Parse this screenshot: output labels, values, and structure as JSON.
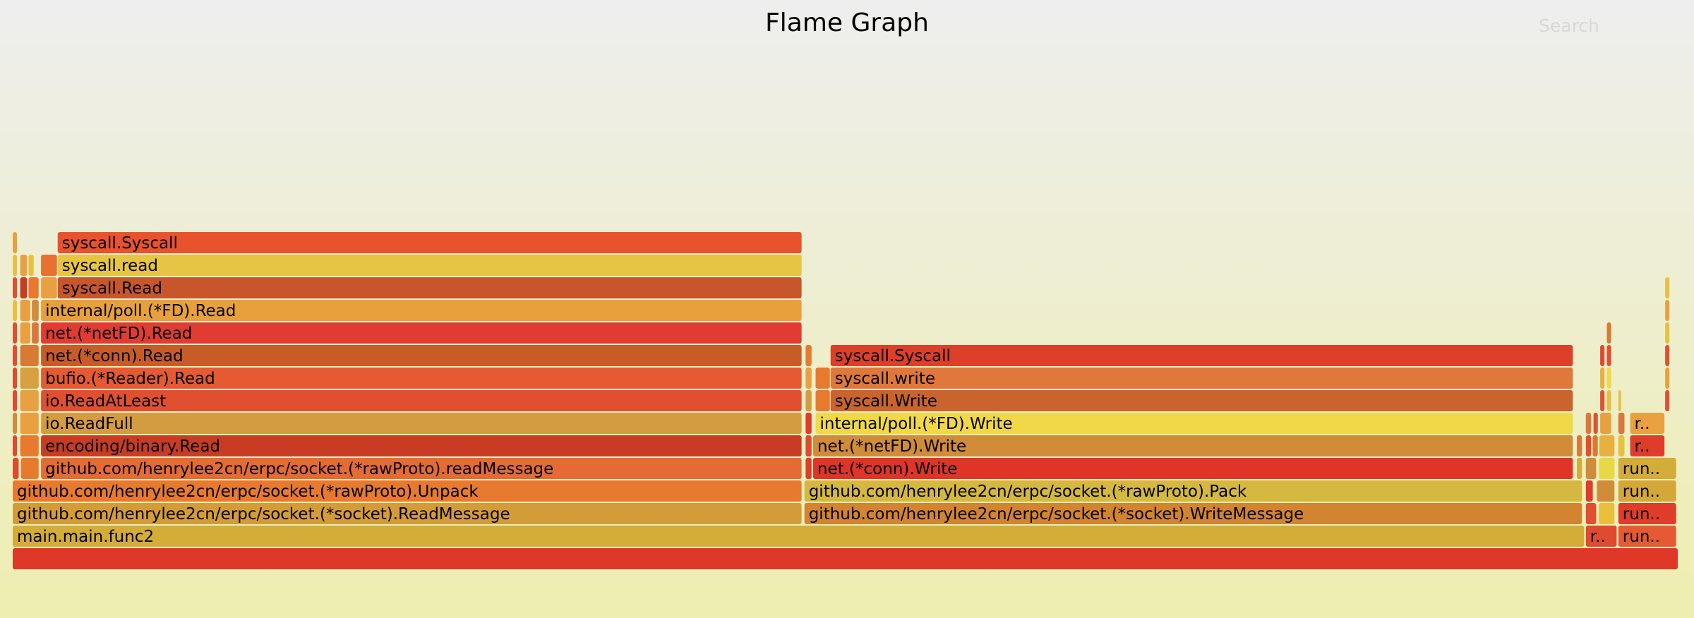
{
  "header": {
    "title": "Flame Graph",
    "search_label": "Search"
  },
  "frames": [
    {
      "level": 0,
      "start": 0.0,
      "end": 1.0,
      "label": "",
      "color": "#e03828"
    },
    {
      "level": 1,
      "start": 0.0,
      "end": 0.9438,
      "label": "main.main.func2",
      "color": "#d4ac38"
    },
    {
      "level": 1,
      "start": 0.9444,
      "end": 0.9633,
      "label": "r..",
      "color": "#e04a30"
    },
    {
      "level": 1,
      "start": 0.9639,
      "end": 0.999,
      "label": "run..",
      "color": "#e55a32"
    },
    {
      "level": 2,
      "start": 0.0,
      "end": 0.474,
      "label": "github.com/henrylee2cn/erpc/socket.(*socket).ReadMessage",
      "color": "#d49c38"
    },
    {
      "level": 2,
      "start": 0.4753,
      "end": 0.9425,
      "label": "github.com/henrylee2cn/erpc/socket.(*socket).WriteMessage",
      "color": "#d28430"
    },
    {
      "level": 2,
      "start": 0.9444,
      "end": 0.951,
      "label": "",
      "color": "#e05030"
    },
    {
      "level": 2,
      "start": 0.9522,
      "end": 0.962,
      "label": "",
      "color": "#e8c03c"
    },
    {
      "level": 2,
      "start": 0.9639,
      "end": 0.999,
      "label": "run..",
      "color": "#e03c2c"
    },
    {
      "level": 3,
      "start": 0.0,
      "end": 0.474,
      "label": "github.com/henrylee2cn/erpc/socket.(*rawProto).Unpack",
      "color": "#e87a30"
    },
    {
      "level": 3,
      "start": 0.4753,
      "end": 0.9425,
      "label": "github.com/henrylee2cn/erpc/socket.(*rawProto).Pack",
      "color": "#d4b840"
    },
    {
      "level": 3,
      "start": 0.9444,
      "end": 0.949,
      "label": "",
      "color": "#e03c2c"
    },
    {
      "level": 3,
      "start": 0.951,
      "end": 0.962,
      "label": "",
      "color": "#d08c38"
    },
    {
      "level": 3,
      "start": 0.9639,
      "end": 0.999,
      "label": "run..",
      "color": "#d4a838"
    },
    {
      "level": 4,
      "start": 0.0,
      "end": 0.004,
      "label": "",
      "color": "#e04a30"
    },
    {
      "level": 4,
      "start": 0.005,
      "end": 0.016,
      "label": "",
      "color": "#e87a30"
    },
    {
      "level": 4,
      "start": 0.017,
      "end": 0.474,
      "label": "github.com/henrylee2cn/erpc/socket.(*rawProto).readMessage",
      "color": "#e56a34"
    },
    {
      "level": 4,
      "start": 0.476,
      "end": 0.48,
      "label": "",
      "color": "#e03c2c"
    },
    {
      "level": 4,
      "start": 0.4805,
      "end": 0.937,
      "label": "net.(*conn).Write",
      "color": "#e03428"
    },
    {
      "level": 4,
      "start": 0.939,
      "end": 0.9425,
      "label": "",
      "color": "#d4ac38"
    },
    {
      "level": 4,
      "start": 0.9444,
      "end": 0.951,
      "label": "",
      "color": "#d08c38"
    },
    {
      "level": 4,
      "start": 0.9522,
      "end": 0.962,
      "label": "",
      "color": "#e8d848"
    },
    {
      "level": 4,
      "start": 0.9639,
      "end": 0.999,
      "label": "run..",
      "color": "#d4ac38"
    },
    {
      "level": 5,
      "start": 0.0,
      "end": 0.003,
      "label": "",
      "color": "#e04a30"
    },
    {
      "level": 5,
      "start": 0.0045,
      "end": 0.016,
      "label": "",
      "color": "#e87a30"
    },
    {
      "level": 5,
      "start": 0.017,
      "end": 0.474,
      "label": "encoding/binary.Read",
      "color": "#c83c24"
    },
    {
      "level": 5,
      "start": 0.476,
      "end": 0.48,
      "label": "",
      "color": "#e04a30"
    },
    {
      "level": 5,
      "start": 0.4805,
      "end": 0.937,
      "label": "net.(*netFD).Write",
      "color": "#d08c38"
    },
    {
      "level": 5,
      "start": 0.939,
      "end": 0.9425,
      "label": "",
      "color": "#d8783c"
    },
    {
      "level": 5,
      "start": 0.9444,
      "end": 0.948,
      "label": "",
      "color": "#e05030"
    },
    {
      "level": 5,
      "start": 0.9485,
      "end": 0.952,
      "label": "",
      "color": "#d87a34"
    },
    {
      "level": 5,
      "start": 0.9525,
      "end": 0.962,
      "label": "",
      "color": "#e8b040"
    },
    {
      "level": 5,
      "start": 0.9639,
      "end": 0.968,
      "label": "",
      "color": "#e8c040"
    },
    {
      "level": 5,
      "start": 0.971,
      "end": 0.992,
      "label": "r..",
      "color": "#e03c2c"
    },
    {
      "level": 6,
      "start": 0.0,
      "end": 0.003,
      "label": "",
      "color": "#d08c38"
    },
    {
      "level": 6,
      "start": 0.0045,
      "end": 0.016,
      "label": "",
      "color": "#e8a040"
    },
    {
      "level": 6,
      "start": 0.017,
      "end": 0.474,
      "label": "io.ReadFull",
      "color": "#d49c40"
    },
    {
      "level": 6,
      "start": 0.476,
      "end": 0.48,
      "label": "",
      "color": "#e03c2c"
    },
    {
      "level": 6,
      "start": 0.482,
      "end": 0.937,
      "label": "internal/poll.(*FD).Write",
      "color": "#f0d848"
    },
    {
      "level": 6,
      "start": 0.9444,
      "end": 0.948,
      "label": "",
      "color": "#d8783c"
    },
    {
      "level": 6,
      "start": 0.949,
      "end": 0.952,
      "label": "",
      "color": "#e05030"
    },
    {
      "level": 6,
      "start": 0.953,
      "end": 0.96,
      "label": "",
      "color": "#e8a040"
    },
    {
      "level": 6,
      "start": 0.9639,
      "end": 0.968,
      "label": "",
      "color": "#d8783c"
    },
    {
      "level": 6,
      "start": 0.971,
      "end": 0.992,
      "label": "r..",
      "color": "#e8a040"
    },
    {
      "level": 7,
      "start": 0.0,
      "end": 0.003,
      "label": "",
      "color": "#e04a30"
    },
    {
      "level": 7,
      "start": 0.0045,
      "end": 0.016,
      "label": "",
      "color": "#e8a040"
    },
    {
      "level": 7,
      "start": 0.017,
      "end": 0.474,
      "label": "io.ReadAtLeast",
      "color": "#e05030"
    },
    {
      "level": 7,
      "start": 0.476,
      "end": 0.48,
      "label": "",
      "color": "#d49c40"
    },
    {
      "level": 7,
      "start": 0.482,
      "end": 0.491,
      "label": "",
      "color": "#e87a30"
    },
    {
      "level": 7,
      "start": 0.491,
      "end": 0.937,
      "label": "syscall.Write",
      "color": "#c8642c"
    },
    {
      "level": 7,
      "start": 0.953,
      "end": 0.956,
      "label": "",
      "color": "#e05030"
    },
    {
      "level": 7,
      "start": 0.957,
      "end": 0.96,
      "label": "",
      "color": "#e8c040"
    },
    {
      "level": 7,
      "start": 0.9639,
      "end": 0.966,
      "label": "",
      "color": "#e8c040"
    },
    {
      "level": 7,
      "start": 0.992,
      "end": 0.995,
      "label": "",
      "color": "#e05030"
    },
    {
      "level": 8,
      "start": 0.0,
      "end": 0.003,
      "label": "",
      "color": "#e04a30"
    },
    {
      "level": 8,
      "start": 0.0045,
      "end": 0.016,
      "label": "",
      "color": "#d8a040"
    },
    {
      "level": 8,
      "start": 0.017,
      "end": 0.474,
      "label": "bufio.(*Reader).Read",
      "color": "#e55a32"
    },
    {
      "level": 8,
      "start": 0.476,
      "end": 0.48,
      "label": "",
      "color": "#e8a040"
    },
    {
      "level": 8,
      "start": 0.482,
      "end": 0.491,
      "label": "",
      "color": "#e87a30"
    },
    {
      "level": 8,
      "start": 0.491,
      "end": 0.937,
      "label": "syscall.write",
      "color": "#e0783c"
    },
    {
      "level": 8,
      "start": 0.953,
      "end": 0.956,
      "label": "",
      "color": "#e8b040"
    },
    {
      "level": 8,
      "start": 0.957,
      "end": 0.96,
      "label": "",
      "color": "#f0d848"
    },
    {
      "level": 8,
      "start": 0.992,
      "end": 0.995,
      "label": "",
      "color": "#e8a040"
    },
    {
      "level": 9,
      "start": 0.0,
      "end": 0.003,
      "label": "",
      "color": "#e05030"
    },
    {
      "level": 9,
      "start": 0.0045,
      "end": 0.016,
      "label": "",
      "color": "#d87a34"
    },
    {
      "level": 9,
      "start": 0.017,
      "end": 0.474,
      "label": "net.(*conn).Read",
      "color": "#c85c28"
    },
    {
      "level": 9,
      "start": 0.476,
      "end": 0.48,
      "label": "",
      "color": "#e87a30"
    },
    {
      "level": 9,
      "start": 0.491,
      "end": 0.937,
      "label": "syscall.Syscall",
      "color": "#dc4028"
    },
    {
      "level": 9,
      "start": 0.953,
      "end": 0.956,
      "label": "",
      "color": "#e04a30"
    },
    {
      "level": 9,
      "start": 0.957,
      "end": 0.96,
      "label": "",
      "color": "#e05030"
    },
    {
      "level": 9,
      "start": 0.992,
      "end": 0.995,
      "label": "",
      "color": "#e05030"
    },
    {
      "level": 10,
      "start": 0.0,
      "end": 0.003,
      "label": "",
      "color": "#e05030"
    },
    {
      "level": 10,
      "start": 0.0045,
      "end": 0.011,
      "label": "",
      "color": "#e8a040"
    },
    {
      "level": 10,
      "start": 0.0115,
      "end": 0.016,
      "label": "",
      "color": "#d8783c"
    },
    {
      "level": 10,
      "start": 0.017,
      "end": 0.474,
      "label": "net.(*netFD).Read",
      "color": "#e03c34"
    },
    {
      "level": 10,
      "start": 0.957,
      "end": 0.96,
      "label": "",
      "color": "#d87a34"
    },
    {
      "level": 10,
      "start": 0.992,
      "end": 0.995,
      "label": "",
      "color": "#e8c040"
    },
    {
      "level": 11,
      "start": 0.0,
      "end": 0.003,
      "label": "",
      "color": "#e8c040"
    },
    {
      "level": 11,
      "start": 0.0045,
      "end": 0.011,
      "label": "",
      "color": "#e8a040"
    },
    {
      "level": 11,
      "start": 0.0115,
      "end": 0.016,
      "label": "",
      "color": "#d08c38"
    },
    {
      "level": 11,
      "start": 0.017,
      "end": 0.474,
      "label": "internal/poll.(*FD).Read",
      "color": "#e8a03c"
    },
    {
      "level": 11,
      "start": 0.992,
      "end": 0.995,
      "label": "",
      "color": "#e8a040"
    },
    {
      "level": 12,
      "start": 0.0,
      "end": 0.003,
      "label": "",
      "color": "#e05030"
    },
    {
      "level": 12,
      "start": 0.0045,
      "end": 0.009,
      "label": "",
      "color": "#c83c24"
    },
    {
      "level": 12,
      "start": 0.0095,
      "end": 0.016,
      "label": "",
      "color": "#e87a30"
    },
    {
      "level": 12,
      "start": 0.017,
      "end": 0.027,
      "label": "",
      "color": "#e8a040"
    },
    {
      "level": 12,
      "start": 0.027,
      "end": 0.474,
      "label": "syscall.Read",
      "color": "#c8562a"
    },
    {
      "level": 12,
      "start": 0.992,
      "end": 0.995,
      "label": "",
      "color": "#e8c040"
    },
    {
      "level": 13,
      "start": 0.0,
      "end": 0.003,
      "label": "",
      "color": "#e8c040"
    },
    {
      "level": 13,
      "start": 0.0045,
      "end": 0.009,
      "label": "",
      "color": "#e8a040"
    },
    {
      "level": 13,
      "start": 0.0095,
      "end": 0.013,
      "label": "",
      "color": "#e8c040"
    },
    {
      "level": 13,
      "start": 0.017,
      "end": 0.027,
      "label": "",
      "color": "#e87030"
    },
    {
      "level": 13,
      "start": 0.027,
      "end": 0.474,
      "label": "syscall.read",
      "color": "#e6c444"
    },
    {
      "level": 14,
      "start": 0.0,
      "end": 0.003,
      "label": "",
      "color": "#e8a040"
    },
    {
      "level": 14,
      "start": 0.027,
      "end": 0.474,
      "label": "syscall.Syscall",
      "color": "#e8522c"
    }
  ]
}
